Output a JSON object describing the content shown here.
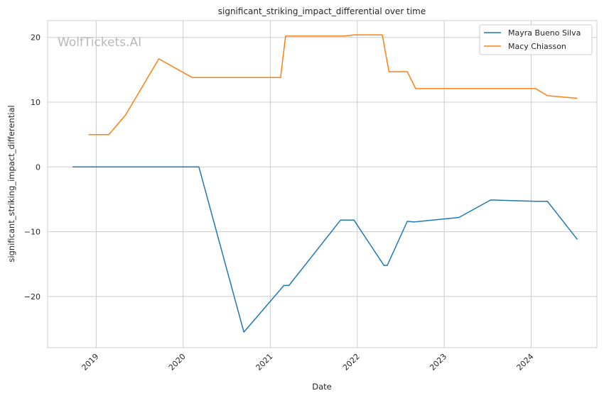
{
  "chart_data": {
    "type": "line",
    "title": "significant_striking_impact_differential over time",
    "xlabel": "Date",
    "ylabel": "significant_striking_impact_differential",
    "watermark": "WolfTickets.AI",
    "x_ticks": [
      "2019",
      "2020",
      "2021",
      "2022",
      "2023",
      "2024"
    ],
    "y_ticks": [
      -20,
      -10,
      0,
      10,
      20
    ],
    "y_tick_labels": [
      "−20",
      "−10",
      "0",
      "10",
      "20"
    ],
    "xlim": [
      "2018-06-11",
      "2024-10-03"
    ],
    "ylim": [
      -27.9,
      22.6
    ],
    "grid": true,
    "legend_position": "top-right",
    "series": [
      {
        "name": "Mayra Bueno Silva",
        "color": "#1f77b4",
        "points": [
          [
            "2018-09-24",
            0
          ],
          [
            "2020-03-07",
            0
          ],
          [
            "2020-09-12",
            -25.5
          ],
          [
            "2021-02-27",
            -18.3
          ],
          [
            "2021-03-20",
            -18.3
          ],
          [
            "2021-10-23",
            -8.2
          ],
          [
            "2021-12-18",
            -8.2
          ],
          [
            "2022-04-23",
            -15.2
          ],
          [
            "2022-05-07",
            -15.2
          ],
          [
            "2022-07-30",
            -8.4
          ],
          [
            "2022-08-27",
            -8.5
          ],
          [
            "2023-03-04",
            -7.8
          ],
          [
            "2023-07-15",
            -5.1
          ],
          [
            "2024-01-20",
            -5.3
          ],
          [
            "2024-03-09",
            -5.3
          ],
          [
            "2024-07-13",
            -11.2
          ]
        ]
      },
      {
        "name": "Macy Chiasson",
        "color": "#ff7f0e",
        "points": [
          [
            "2018-11-30",
            5.0
          ],
          [
            "2019-02-23",
            5.0
          ],
          [
            "2019-05-04",
            8.0
          ],
          [
            "2019-09-21",
            16.7
          ],
          [
            "2020-02-08",
            13.8
          ],
          [
            "2021-02-13",
            13.8
          ],
          [
            "2021-03-06",
            20.2
          ],
          [
            "2021-11-06",
            20.2
          ],
          [
            "2021-12-18",
            20.4
          ],
          [
            "2022-04-16",
            20.4
          ],
          [
            "2022-05-14",
            14.7
          ],
          [
            "2022-07-30",
            14.7
          ],
          [
            "2022-09-03",
            12.1
          ],
          [
            "2024-01-20",
            12.1
          ],
          [
            "2024-03-09",
            11.0
          ],
          [
            "2024-07-13",
            10.6
          ]
        ]
      }
    ]
  }
}
